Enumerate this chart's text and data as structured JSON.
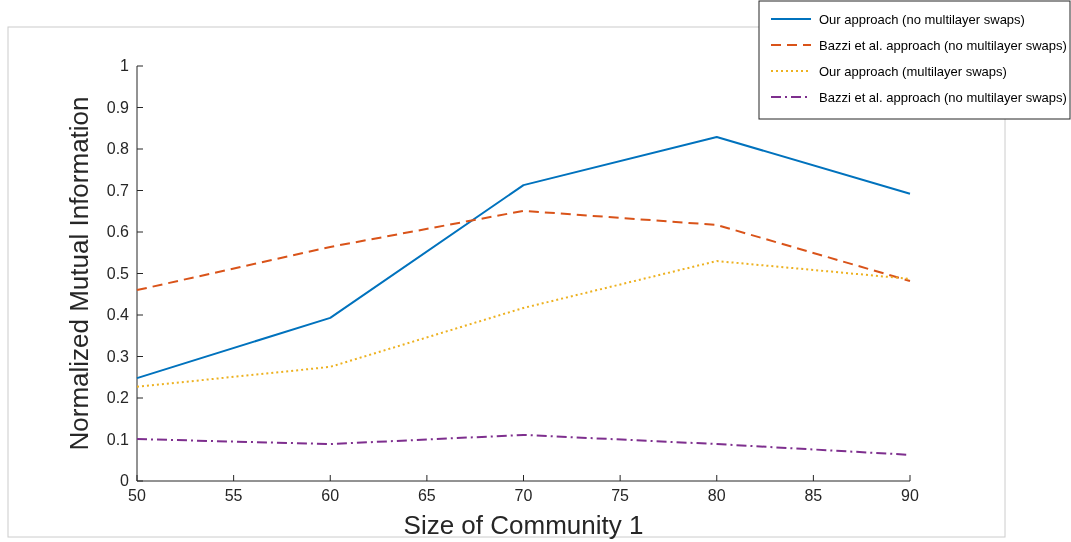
{
  "chart_data": {
    "type": "line",
    "xlabel": "Size of Community 1",
    "ylabel": "Normalized Mutual Information",
    "x": [
      50,
      60,
      70,
      80,
      90
    ],
    "xlim": [
      50,
      90
    ],
    "xticks": [
      50,
      55,
      60,
      65,
      70,
      75,
      80,
      85,
      90
    ],
    "ylim": [
      0,
      1
    ],
    "yticks": [
      0,
      0.1,
      0.2,
      0.3,
      0.4,
      0.5,
      0.6,
      0.7,
      0.8,
      0.9,
      1
    ],
    "grid": false,
    "legend": "top right",
    "marker": "none",
    "series": [
      {
        "name": "Our approach (no multilayer swaps)",
        "color": "#0072bd",
        "line_style": "solid",
        "values": [
          0.248,
          0.393,
          0.713,
          0.829,
          0.692
        ]
      },
      {
        "name": "Bazzi et al. approach (no multilayer swaps)",
        "color": "#d95319",
        "line_style": "dashed",
        "values": [
          0.46,
          0.564,
          0.651,
          0.617,
          0.482
        ]
      },
      {
        "name": "Our approach (multilayer swaps)",
        "color": "#edb120",
        "line_style": "dotted",
        "values": [
          0.227,
          0.275,
          0.417,
          0.53,
          0.487
        ]
      },
      {
        "name": "Bazzi et al. approach (no multilayer swaps)",
        "color": "#7e2f8e",
        "line_style": "dashdot",
        "values": [
          0.101,
          0.089,
          0.111,
          0.089,
          0.063
        ]
      }
    ]
  }
}
